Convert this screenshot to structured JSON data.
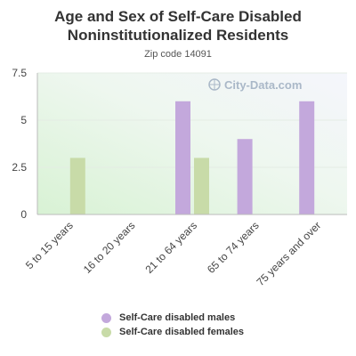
{
  "chart_data": {
    "type": "bar",
    "title": "Age and Sex of Self-Care Disabled Noninstitutionalized Residents",
    "subtitle": "Zip code 14091",
    "watermark": "City-Data.com",
    "categories": [
      "5 to 15 years",
      "16 to 20 years",
      "21 to 64 years",
      "65 to 74 years",
      "75 years and over"
    ],
    "series": [
      {
        "name": "Self-Care disabled males",
        "color": "#c3a8dc",
        "values": [
          0,
          0,
          6,
          4,
          6
        ]
      },
      {
        "name": "Self-Care disabled females",
        "color": "#c8dba8",
        "values": [
          3,
          0,
          3,
          0,
          0
        ]
      }
    ],
    "yticks": [
      "0",
      "2.5",
      "5",
      "7.5"
    ],
    "ylim": [
      0,
      7.5
    ],
    "grid": true,
    "legend_position": "bottom"
  }
}
